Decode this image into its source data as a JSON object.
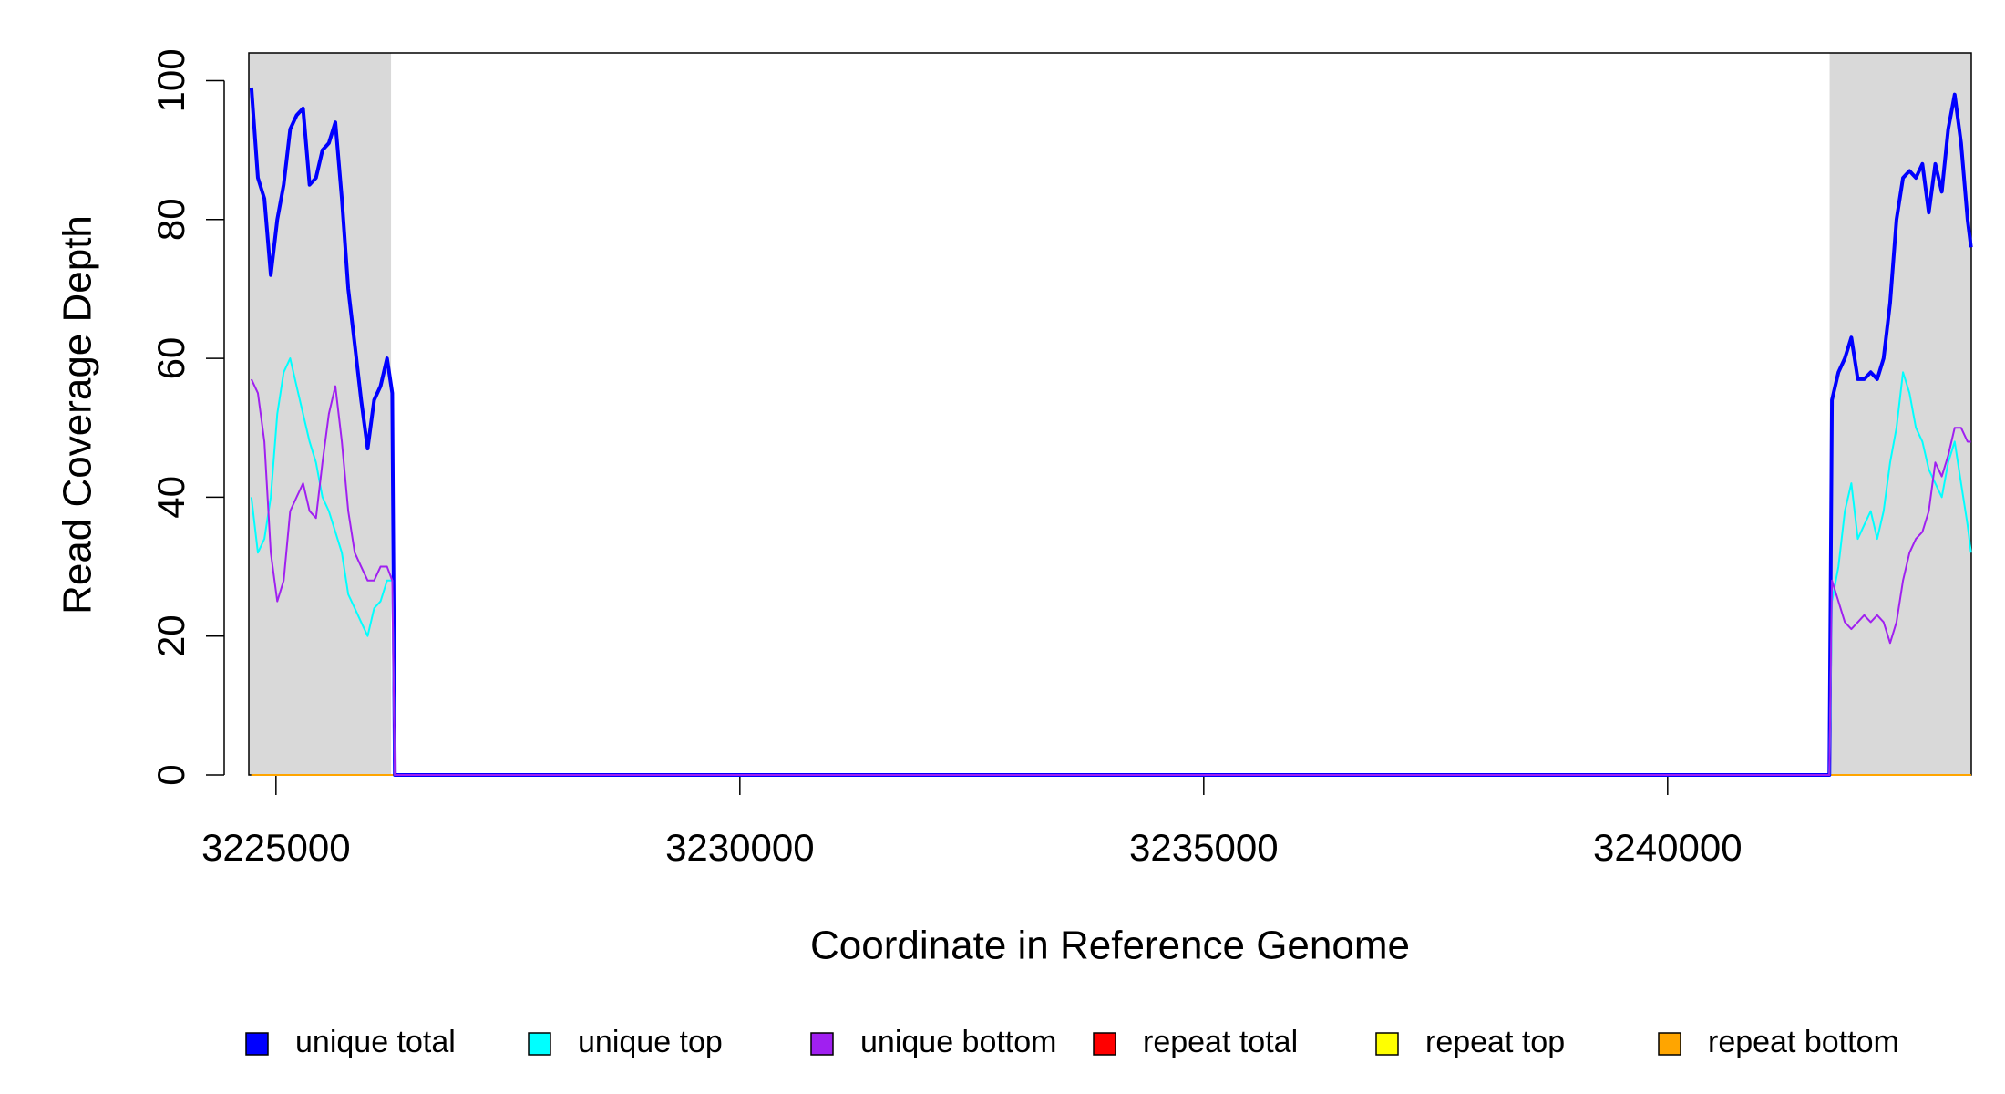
{
  "chart_data": {
    "type": "line",
    "xlabel": "Coordinate in Reference Genome",
    "ylabel": "Read Coverage Depth",
    "xlim": [
      3224707,
      3243273
    ],
    "ylim": [
      0,
      104
    ],
    "xticks": [
      3225000,
      3230000,
      3235000,
      3240000
    ],
    "yticks": [
      0,
      20,
      40,
      60,
      80,
      100
    ],
    "highlight_regions": [
      [
        3224707,
        3226240
      ],
      [
        3241746,
        3243273
      ]
    ],
    "x": [
      3224735,
      3224805,
      3224875,
      3224944,
      3225014,
      3225083,
      3225153,
      3225222,
      3225292,
      3225362,
      3225431,
      3225501,
      3225570,
      3225640,
      3225710,
      3225779,
      3225849,
      3225918,
      3225988,
      3226058,
      3226127,
      3226197,
      3226253,
      3226281,
      3241743,
      3241771,
      3241841,
      3241910,
      3241980,
      3242050,
      3242119,
      3242189,
      3242259,
      3242328,
      3242398,
      3242467,
      3242537,
      3242607,
      3242676,
      3242746,
      3242815,
      3242885,
      3242955,
      3243024,
      3243094,
      3243163,
      3243233,
      3243270
    ],
    "series": [
      {
        "name": "repeat total",
        "color": "#ff0000",
        "legend_order": 3,
        "values": [
          0,
          0,
          0,
          0,
          0,
          0,
          0,
          0,
          0,
          0,
          0,
          0,
          0,
          0,
          0,
          0,
          0,
          0,
          0,
          0,
          0,
          0,
          0,
          0,
          0,
          0,
          0,
          0,
          0,
          0,
          0,
          0,
          0,
          0,
          0,
          0,
          0,
          0,
          0,
          0,
          0,
          0,
          0,
          0,
          0,
          0,
          0,
          0
        ]
      },
      {
        "name": "repeat top",
        "color": "#ffff00",
        "legend_order": 4,
        "values": [
          0,
          0,
          0,
          0,
          0,
          0,
          0,
          0,
          0,
          0,
          0,
          0,
          0,
          0,
          0,
          0,
          0,
          0,
          0,
          0,
          0,
          0,
          0,
          0,
          0,
          0,
          0,
          0,
          0,
          0,
          0,
          0,
          0,
          0,
          0,
          0,
          0,
          0,
          0,
          0,
          0,
          0,
          0,
          0,
          0,
          0,
          0,
          0
        ]
      },
      {
        "name": "repeat bottom",
        "color": "#ffa500",
        "legend_order": 5,
        "values": [
          0,
          0,
          0,
          0,
          0,
          0,
          0,
          0,
          0,
          0,
          0,
          0,
          0,
          0,
          0,
          0,
          0,
          0,
          0,
          0,
          0,
          0,
          0,
          0,
          0,
          0,
          0,
          0,
          0,
          0,
          0,
          0,
          0,
          0,
          0,
          0,
          0,
          0,
          0,
          0,
          0,
          0,
          0,
          0,
          0,
          0,
          0,
          0
        ]
      },
      {
        "name": "unique total",
        "color": "#0000ff",
        "legend_order": 0,
        "values": [
          99,
          86,
          83,
          72,
          80,
          85,
          93,
          95,
          96,
          85,
          86,
          90,
          91,
          94,
          83,
          70,
          62,
          54,
          47,
          54,
          56,
          60,
          55,
          0,
          0,
          54,
          58,
          60,
          63,
          57,
          57,
          58,
          57,
          60,
          68,
          80,
          86,
          87,
          86,
          88,
          81,
          88,
          84,
          93,
          98,
          91,
          80,
          76
        ]
      },
      {
        "name": "unique top",
        "color": "#00ffff",
        "legend_order": 1,
        "values": [
          40,
          32,
          34,
          40,
          52,
          58,
          60,
          56,
          52,
          48,
          45,
          40,
          38,
          35,
          32,
          26,
          24,
          22,
          20,
          24,
          25,
          28,
          28,
          0,
          0,
          25,
          30,
          38,
          42,
          34,
          36,
          38,
          34,
          38,
          45,
          50,
          58,
          55,
          50,
          48,
          44,
          42,
          40,
          45,
          48,
          42,
          36,
          32
        ]
      },
      {
        "name": "unique bottom",
        "color": "#a020f0",
        "legend_order": 2,
        "values": [
          57,
          55,
          48,
          32,
          25,
          28,
          38,
          40,
          42,
          38,
          37,
          45,
          52,
          56,
          48,
          38,
          32,
          30,
          28,
          28,
          30,
          30,
          28,
          0,
          0,
          28,
          25,
          22,
          21,
          22,
          23,
          22,
          23,
          22,
          19,
          22,
          28,
          32,
          34,
          35,
          38,
          45,
          43,
          46,
          50,
          50,
          48,
          48
        ]
      }
    ]
  }
}
